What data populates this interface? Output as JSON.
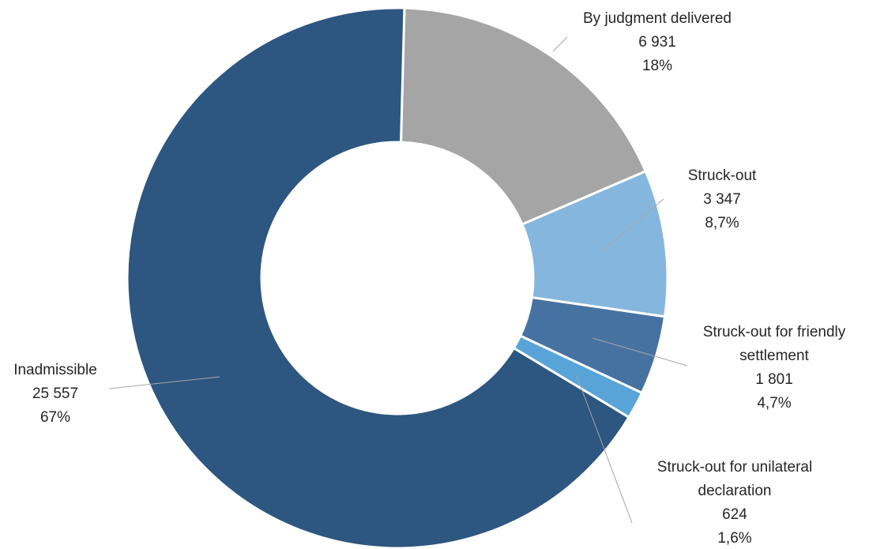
{
  "chart_data": {
    "type": "pie",
    "variant": "donut",
    "title": "",
    "slices": [
      {
        "label_lines": [
          "By judgment delivered"
        ],
        "value_text": "6 931",
        "percent_text": "18%",
        "value": 6931,
        "color": "#a5a5a5"
      },
      {
        "label_lines": [
          "Struck-out"
        ],
        "value_text": "3 347",
        "percent_text": "8,7%",
        "value": 3347,
        "color": "#85b7de"
      },
      {
        "label_lines": [
          "Struck-out for friendly",
          "settlement"
        ],
        "value_text": "1 801",
        "percent_text": "4,7%",
        "value": 1801,
        "color": "#4672a2"
      },
      {
        "label_lines": [
          "Struck-out for unilateral",
          "declaration"
        ],
        "value_text": "624",
        "percent_text": "1,6%",
        "value": 624,
        "color": "#58a4d8"
      },
      {
        "label_lines": [
          "Inadmissible"
        ],
        "value_text": "25 557",
        "percent_text": "67%",
        "value": 25557,
        "color": "#2d5680"
      }
    ],
    "legend": "none"
  }
}
